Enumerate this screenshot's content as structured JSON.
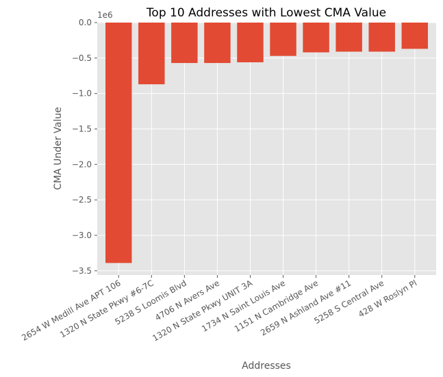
{
  "chart_data": {
    "type": "bar",
    "title": "Top 10 Addresses with Lowest CMA Value",
    "xlabel": "Addresses",
    "ylabel": "CMA Under Value",
    "y_offset_label": "1e6",
    "categories": [
      "2654 W Medill Ave APT 106",
      "1320 N State Pkwy #6-7C",
      "5238 S Loomis Blvd",
      "4706 N Avers Ave",
      "1320 N State Pkwy UNIT 3A",
      "1734 N Saint Louis Ave",
      "1151 N Cambridge Ave",
      "2659 N Ashland Ave #11",
      "5258 S Central Ave",
      "428 W Roslyn Pl"
    ],
    "values": [
      -3390000,
      -870000,
      -570000,
      -570000,
      -560000,
      -470000,
      -420000,
      -410000,
      -410000,
      -370000
    ],
    "ylim": [
      -3560000,
      0
    ],
    "yticks": [
      0.0,
      -0.5,
      -1.0,
      -1.5,
      -2.0,
      -2.5,
      -3.0,
      -3.5
    ],
    "ytick_labels": [
      "0.0",
      "−0.5",
      "−1.0",
      "−1.5",
      "−2.0",
      "−2.5",
      "−3.0",
      "−3.5"
    ],
    "grid": true,
    "colors": {
      "bar": "#E24A33",
      "background": "#E5E5E5",
      "grid": "#FFFFFF"
    }
  }
}
